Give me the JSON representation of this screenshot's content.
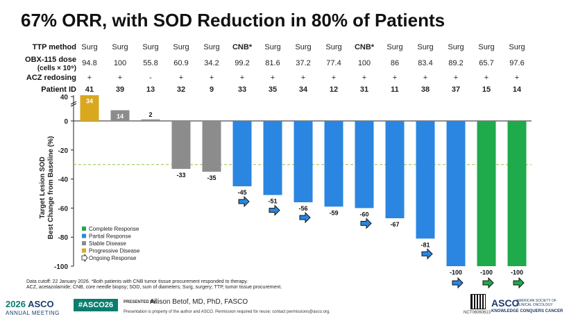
{
  "title": "67% ORR, with SOD Reduction in 80% of Patients",
  "header": {
    "ttp_label": "TTP method",
    "dose_label_1": "OBX-115 dose",
    "dose_label_2": "(cells × 10⁹)",
    "acz_label": "ACZ redosing",
    "pid_label": "Patient ID"
  },
  "chart_data": {
    "type": "bar",
    "categories": [
      "41",
      "39",
      "13",
      "32",
      "9",
      "33",
      "35",
      "34",
      "12",
      "31",
      "11",
      "38",
      "37",
      "15",
      "14"
    ],
    "values": [
      34,
      14,
      2,
      -33,
      -35,
      -45,
      -51,
      -56,
      -59,
      -60,
      -67,
      -81,
      -100,
      -100,
      -100
    ],
    "bar_labels": [
      "34",
      "14",
      "2",
      "-33",
      "-35",
      "-45",
      "-51",
      "-56",
      "-59",
      "-60",
      "-67",
      "-81",
      "-100",
      "-100",
      "-100"
    ],
    "response": [
      "PD",
      "SD",
      "SD",
      "SD",
      "SD",
      "PR",
      "PR",
      "PR",
      "PR",
      "PR",
      "PR",
      "PR",
      "PR",
      "CR",
      "CR"
    ],
    "ongoing": [
      false,
      false,
      false,
      false,
      false,
      true,
      true,
      true,
      false,
      true,
      false,
      true,
      true,
      true,
      true
    ],
    "ttp_method": [
      "Surg",
      "Surg",
      "Surg",
      "Surg",
      "Surg",
      "CNB*",
      "Surg",
      "Surg",
      "Surg",
      "CNB*",
      "Surg",
      "Surg",
      "Surg",
      "Surg",
      "Surg"
    ],
    "dose": [
      "94.8",
      "100",
      "55.8",
      "60.9",
      "34.2",
      "99.2",
      "81.6",
      "37.2",
      "77.4",
      "100",
      "86",
      "83.4",
      "89.2",
      "65.7",
      "97.6"
    ],
    "acz_redosing": [
      "+",
      "+",
      "-",
      "+",
      "+",
      "+",
      "+",
      "+",
      "+",
      "+",
      "+",
      "+",
      "+",
      "+",
      "+"
    ],
    "ylabel_1": "Target Lesion SOD",
    "ylabel_2": "Best Change from Baseline (%)",
    "yticks": [
      "40",
      "0",
      "-20",
      "-40",
      "-60",
      "-80",
      "-100"
    ],
    "ylim": [
      -100,
      40
    ],
    "reference_line": -30,
    "legend_position": "bottom-left",
    "legend": [
      {
        "key": "CR",
        "label": "Complete Response",
        "color": "#1faa4b"
      },
      {
        "key": "PR",
        "label": "Partial Response",
        "color": "#2a86e0"
      },
      {
        "key": "SD",
        "label": "Stable Disease",
        "color": "#8c8c8c"
      },
      {
        "key": "PD",
        "label": "Progressive Disease",
        "color": "#d9a81f"
      },
      {
        "key": "ONG",
        "label": "Ongoing Response",
        "color": "#ffffff"
      }
    ]
  },
  "footnotes": {
    "line1": "Data cutoff: 22 January 2026. *Both patients with CNB tumor tissue procurement responded to therapy.",
    "line2": "ACZ, acetazolamide; CNB, core needle biopsy; SOD, sum of diameters; Surg, surgery; TTP, tumor tissue procurement."
  },
  "branding": {
    "meeting_year": "2026",
    "meeting_org": "ASCO",
    "meeting_sub": "ANNUAL MEETING",
    "hashtag": "#ASCO26",
    "presented_by": "PRESENTED BY:",
    "presenter": "Allison Betof, MD, PhD, FASCO",
    "disclaimer": "Presentation is property of the author and ASCO. Permission required for reuse; contact permissions@asco.org.",
    "nct": "NCT06060613",
    "asco_right": "ASCO",
    "asco_right_sub1": "AMERICAN SOCIETY OF",
    "asco_right_sub2": "CLINICAL ONCOLOGY",
    "asco_tagline": "KNOWLEDGE CONQUERS CANCER"
  }
}
